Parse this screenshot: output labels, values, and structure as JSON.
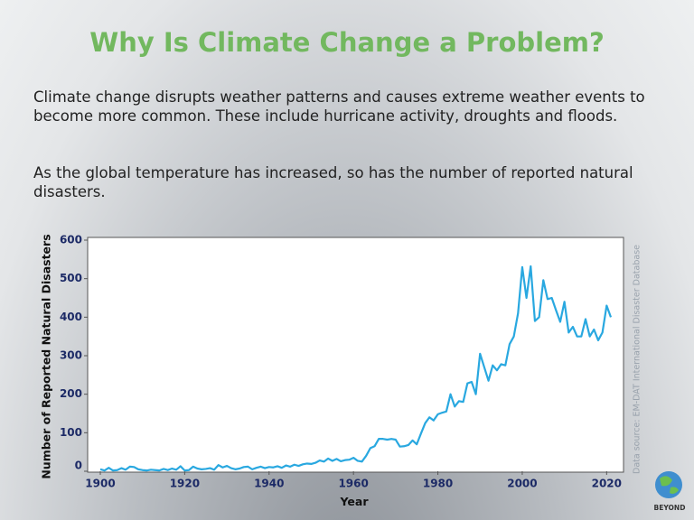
{
  "title": "Why Is Climate Change a Problem?",
  "paragraphs": [
    "Climate change disrupts weather patterns and causes extreme weather events to become more common. These include hurricane activity, droughts and floods.",
    "As the global temperature has increased, so has the number of reported natural disasters."
  ],
  "logo_text": "BEYOND",
  "chart_data": {
    "type": "line",
    "xlabel": "Year",
    "ylabel": "Number of Reported Natural Disasters",
    "source": "Data source: EM-DAT International Disaster Database",
    "xlim": [
      1897,
      2024
    ],
    "ylim": [
      0,
      600
    ],
    "xticks": [
      1900,
      1920,
      1940,
      1960,
      1980,
      2000,
      2020
    ],
    "yticks": [
      0,
      100,
      200,
      300,
      400,
      500,
      600
    ],
    "color": "#29a8e0",
    "x": [
      1900,
      1901,
      1902,
      1903,
      1904,
      1905,
      1906,
      1907,
      1908,
      1909,
      1910,
      1911,
      1912,
      1913,
      1914,
      1915,
      1916,
      1917,
      1918,
      1919,
      1920,
      1921,
      1922,
      1923,
      1924,
      1925,
      1926,
      1927,
      1928,
      1929,
      1930,
      1931,
      1932,
      1933,
      1934,
      1935,
      1936,
      1937,
      1938,
      1939,
      1940,
      1941,
      1942,
      1943,
      1944,
      1945,
      1946,
      1947,
      1948,
      1949,
      1950,
      1951,
      1952,
      1953,
      1954,
      1955,
      1956,
      1957,
      1958,
      1959,
      1960,
      1961,
      1962,
      1963,
      1964,
      1965,
      1966,
      1967,
      1968,
      1969,
      1970,
      1971,
      1972,
      1973,
      1974,
      1975,
      1976,
      1977,
      1978,
      1979,
      1980,
      1981,
      1982,
      1983,
      1984,
      1985,
      1986,
      1987,
      1988,
      1989,
      1990,
      1991,
      1992,
      1993,
      1994,
      1995,
      1996,
      1997,
      1998,
      1999,
      2000,
      2001,
      2002,
      2003,
      2004,
      2005,
      2006,
      2007,
      2008,
      2009,
      2010,
      2011,
      2012,
      2013,
      2014,
      2015,
      2016,
      2017,
      2018,
      2019,
      2020,
      2021
    ],
    "values": [
      5,
      2,
      9,
      2,
      3,
      8,
      4,
      12,
      11,
      5,
      3,
      2,
      4,
      3,
      2,
      6,
      3,
      7,
      4,
      13,
      2,
      3,
      12,
      7,
      5,
      6,
      8,
      4,
      16,
      10,
      14,
      8,
      5,
      7,
      11,
      12,
      5,
      9,
      12,
      8,
      11,
      10,
      13,
      9,
      15,
      12,
      17,
      14,
      18,
      20,
      19,
      22,
      28,
      25,
      33,
      27,
      32,
      26,
      29,
      30,
      35,
      27,
      25,
      40,
      60,
      65,
      84,
      84,
      82,
      84,
      82,
      64,
      65,
      68,
      80,
      70,
      98,
      125,
      140,
      132,
      148,
      152,
      155,
      200,
      168,
      182,
      180,
      228,
      232,
      200,
      305,
      270,
      235,
      275,
      262,
      278,
      275,
      330,
      350,
      410,
      530,
      450,
      532,
      390,
      400,
      496,
      447,
      450,
      418,
      388,
      440,
      360,
      375,
      350,
      350,
      395,
      350,
      368,
      340,
      360,
      430,
      400
    ]
  }
}
